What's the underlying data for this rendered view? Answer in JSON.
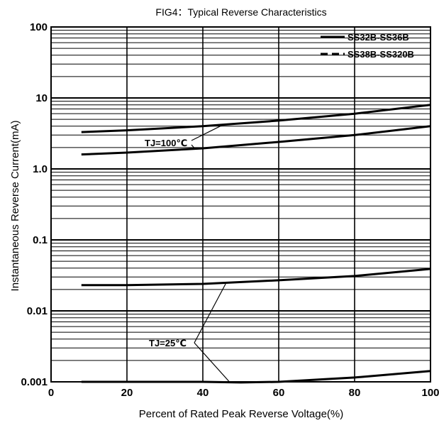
{
  "chart_data": {
    "type": "line",
    "title": "FIG4：Typical Reverse Characteristics",
    "xlabel": "Percent of Rated Peak Reverse Voltage(%)",
    "ylabel": "Instantaneous Reverse Current(mA)",
    "xlim": [
      0,
      100
    ],
    "ylim": [
      0.001,
      100
    ],
    "yscale": "log",
    "grid": true,
    "legend_position": "top-right",
    "x_ticks": [
      {
        "value": 0,
        "label": "0"
      },
      {
        "value": 20,
        "label": "20"
      },
      {
        "value": 40,
        "label": "40"
      },
      {
        "value": 60,
        "label": "60"
      },
      {
        "value": 80,
        "label": "80"
      },
      {
        "value": 100,
        "label": "100"
      }
    ],
    "y_ticks": [
      {
        "value": 0.001,
        "label": "0.001"
      },
      {
        "value": 0.01,
        "label": "0.01"
      },
      {
        "value": 0.1,
        "label": "0.1"
      },
      {
        "value": 1,
        "label": "1.0"
      },
      {
        "value": 10,
        "label": "10"
      },
      {
        "value": 100,
        "label": "100"
      }
    ],
    "legend": [
      {
        "label": "SS32B-SS36B",
        "style": "solid"
      },
      {
        "label": "SS38B-SS320B",
        "style": "dashed"
      }
    ],
    "series": [
      {
        "style": "solid",
        "color": "#000000",
        "x": [
          8,
          20,
          40,
          60,
          80,
          100
        ],
        "y": [
          3.3,
          3.5,
          4.0,
          4.8,
          6.0,
          8.0
        ]
      },
      {
        "style": "solid",
        "color": "#000000",
        "x": [
          8,
          20,
          40,
          60,
          80,
          100
        ],
        "y": [
          1.6,
          1.7,
          1.95,
          2.4,
          3.0,
          4.0
        ]
      },
      {
        "style": "solid",
        "color": "#000000",
        "x": [
          8,
          20,
          40,
          60,
          80,
          100
        ],
        "y": [
          0.023,
          0.023,
          0.024,
          0.027,
          0.031,
          0.039
        ]
      },
      {
        "style": "solid",
        "color": "#000000",
        "x": [
          8,
          20,
          40,
          50,
          60,
          80,
          100
        ],
        "y": [
          0.001,
          0.001,
          0.001,
          0.00098,
          0.001,
          0.00115,
          0.00142
        ]
      }
    ],
    "annotations": [
      {
        "text": "TJ=100℃"
      },
      {
        "text": "TJ=25℃"
      }
    ]
  }
}
